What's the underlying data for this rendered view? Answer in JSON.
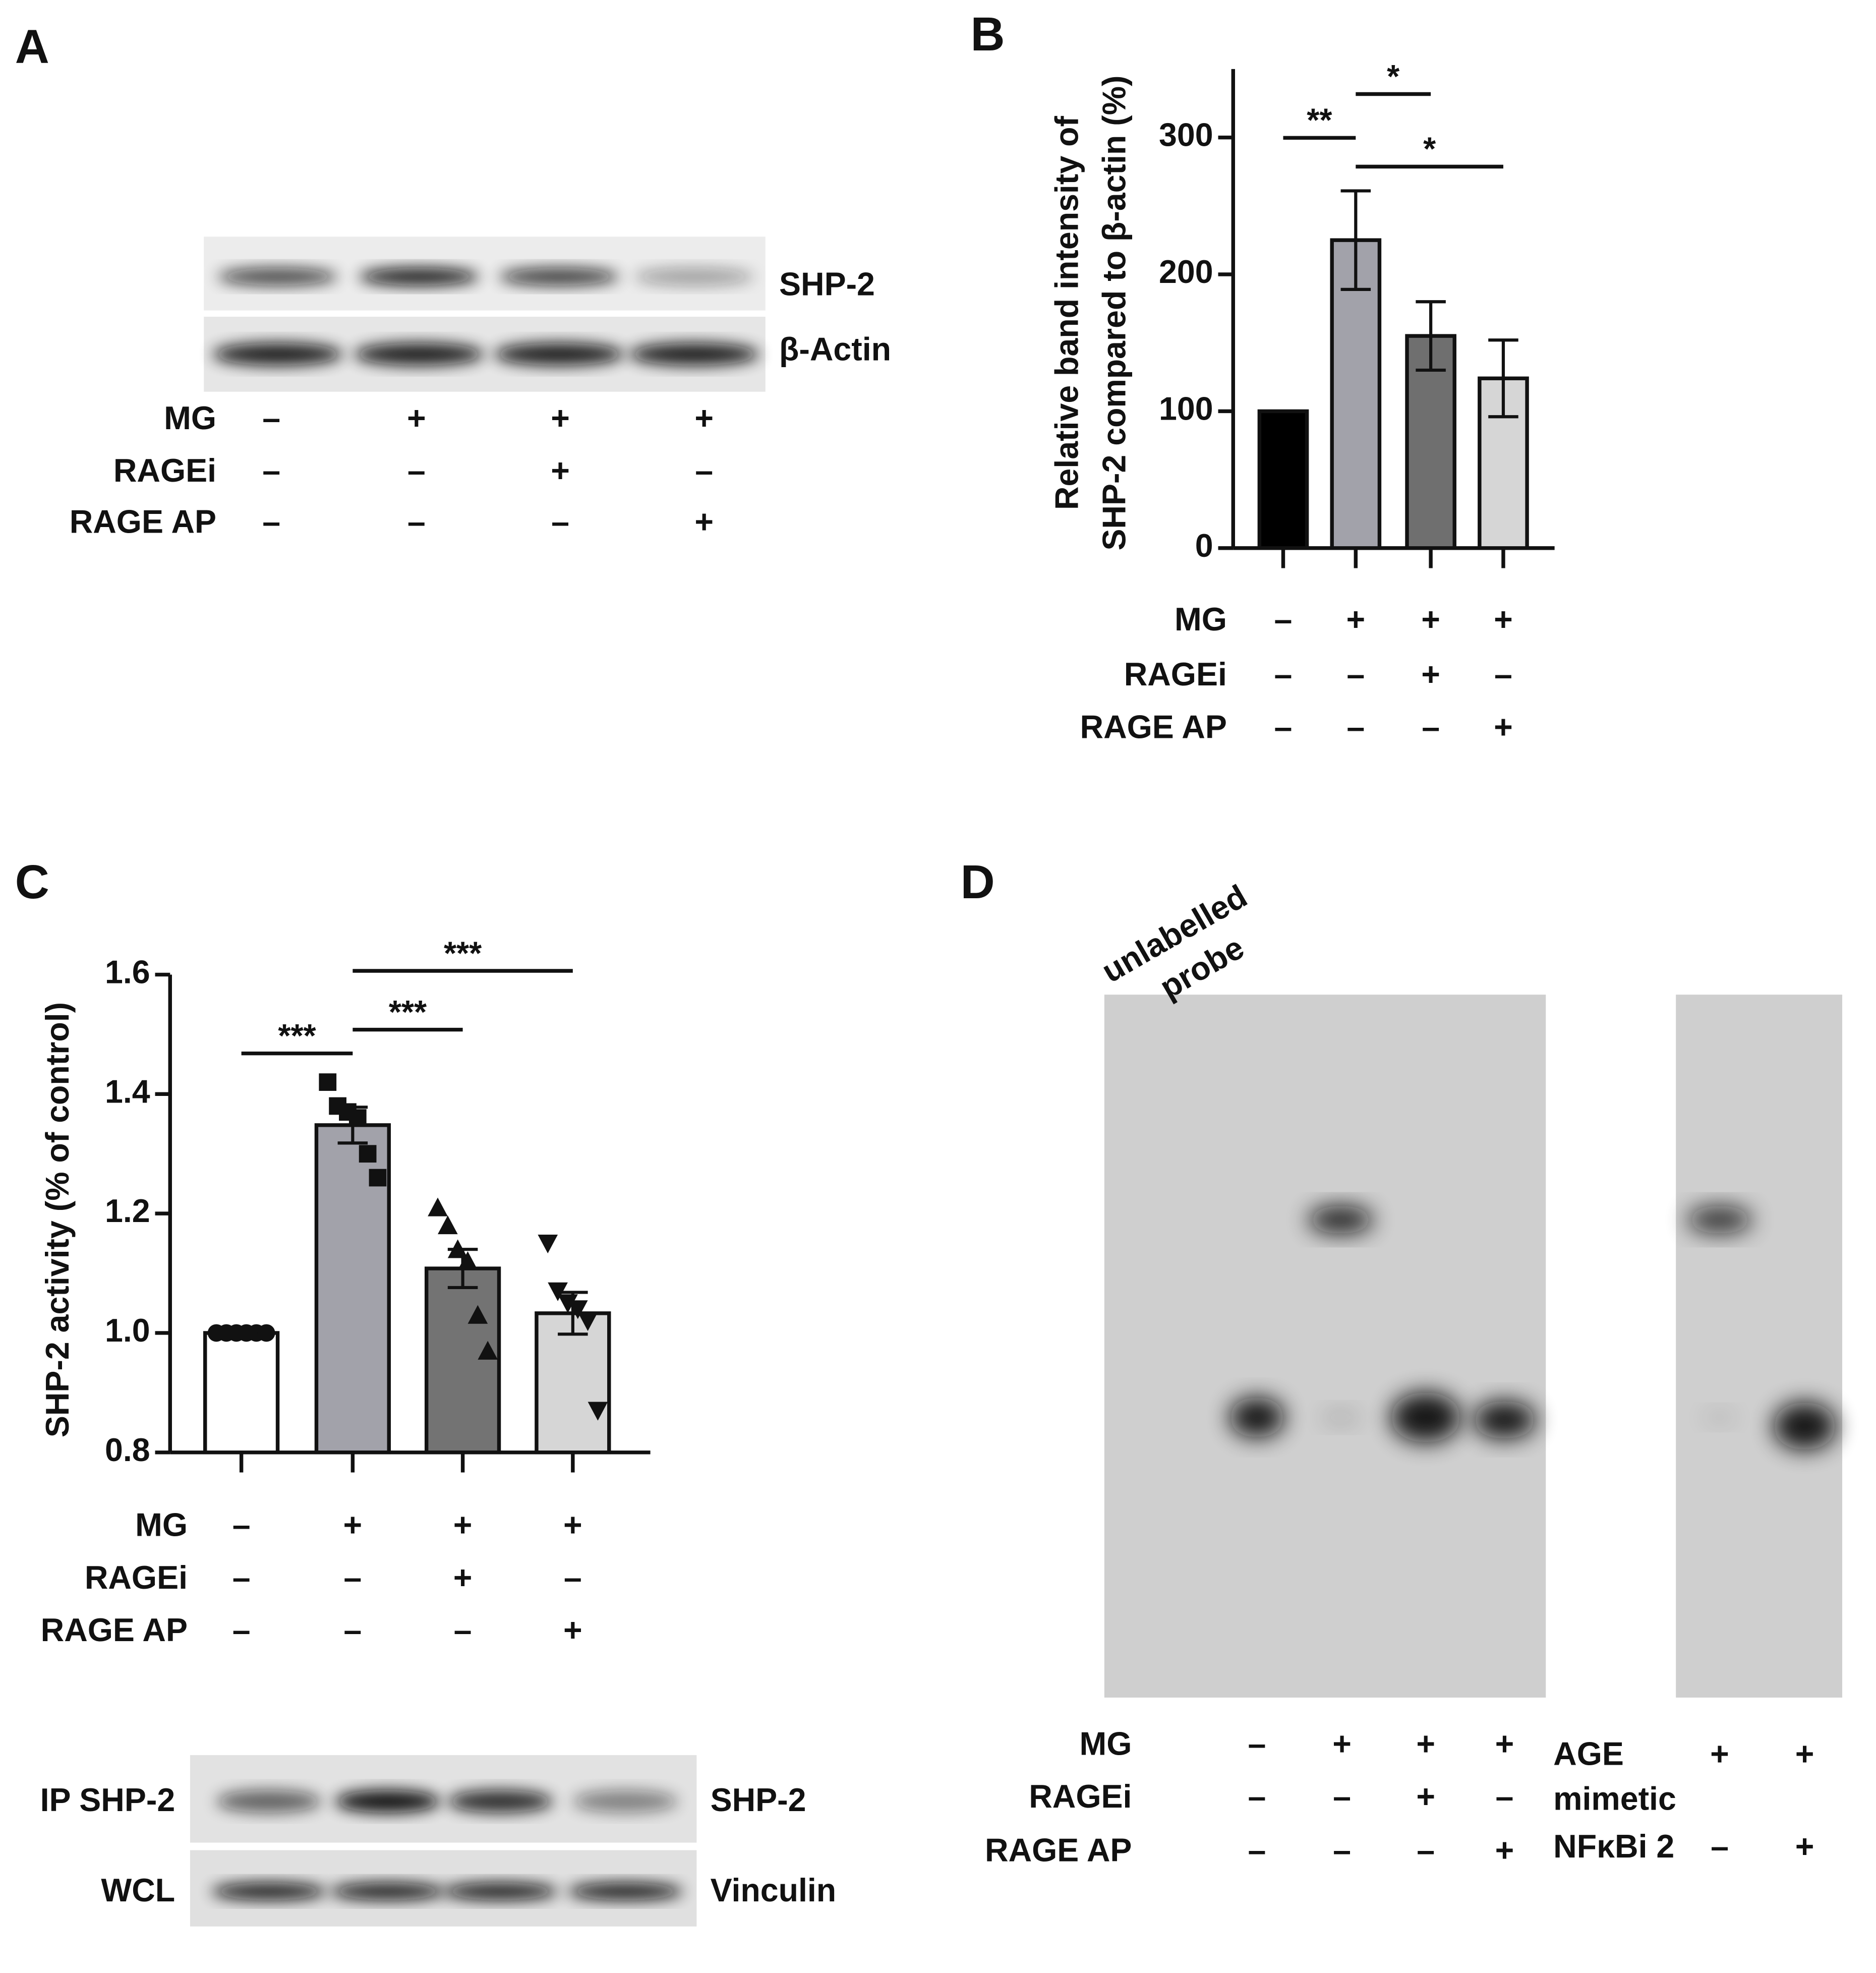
{
  "panels": {
    "a": "A",
    "b": "B",
    "c": "C",
    "d": "D"
  },
  "blot_a": {
    "bands": [
      "SHP-2",
      "β-Actin"
    ],
    "conditions": [
      {
        "name": "MG",
        "signs": [
          "–",
          "+",
          "+",
          "+"
        ]
      },
      {
        "name": "RAGEi",
        "signs": [
          "–",
          "–",
          "+",
          "–"
        ]
      },
      {
        "name": "RAGE AP",
        "signs": [
          "–",
          "–",
          "–",
          "+"
        ]
      }
    ]
  },
  "chart_data": [
    {
      "type": "bar",
      "ylabel": [
        "Relative band intensity of",
        "SHP-2 compared to β-actin (%)"
      ],
      "ylim": [
        0,
        350
      ],
      "yticks": [
        0,
        100,
        200,
        300
      ],
      "values": [
        100,
        225,
        155,
        124
      ],
      "errors": [
        0,
        36,
        25,
        28
      ],
      "colors": [
        "#000000",
        "#a2a2aa",
        "#6f6f6f",
        "#d6d6d6"
      ],
      "significance": [
        "**",
        "*",
        "*"
      ],
      "conditions": [
        {
          "name": "MG",
          "signs": [
            "–",
            "+",
            "+",
            "+"
          ]
        },
        {
          "name": "RAGEi",
          "signs": [
            "–",
            "–",
            "+",
            "–"
          ]
        },
        {
          "name": "RAGE AP",
          "signs": [
            "–",
            "–",
            "–",
            "+"
          ]
        }
      ]
    },
    {
      "type": "bar",
      "ylabel": [
        "SHP-2 activity (% of control)"
      ],
      "ylim": [
        0.8,
        1.6
      ],
      "yticks": [
        0.8,
        {
          "value": 1,
          "label": "1.0"
        },
        1.2,
        1.4,
        1.6
      ],
      "values": [
        1.0,
        1.348,
        1.108,
        1.033
      ],
      "errors": [
        0,
        0.03,
        0.032,
        0.035
      ],
      "points": [
        [
          1,
          1,
          1,
          1,
          1,
          1
        ],
        [
          1.42,
          1.38,
          1.37,
          1.36,
          1.3,
          1.26
        ],
        [
          1.21,
          1.18,
          1.14,
          1.12,
          1.03,
          0.97
        ],
        [
          1.15,
          1.07,
          1.05,
          1.04,
          1.02,
          0.87
        ]
      ],
      "colors": [
        "#ffffff",
        "#a2a2aa",
        "#737373",
        "#d6d6d6"
      ],
      "significance": [
        "***",
        "***",
        "***"
      ],
      "conditions": [
        {
          "name": "MG",
          "signs": [
            "–",
            "+",
            "+",
            "+"
          ]
        },
        {
          "name": "RAGEi",
          "signs": [
            "–",
            "–",
            "+",
            "–"
          ]
        },
        {
          "name": "RAGE AP",
          "signs": [
            "–",
            "–",
            "–",
            "+"
          ]
        }
      ]
    }
  ],
  "blot_c": {
    "rows": [
      "IP SHP-2",
      "WCL"
    ],
    "bands": [
      "SHP-2",
      "Vinculin"
    ]
  },
  "gel_d": {
    "lane_label": [
      "unlabelled",
      "probe"
    ],
    "conditions": [
      {
        "name": "MG",
        "signs": [
          "–",
          "+",
          "+",
          "+"
        ]
      },
      {
        "name": "RAGEi",
        "signs": [
          "–",
          "–",
          "+",
          "–"
        ]
      },
      {
        "name": "RAGE AP",
        "signs": [
          "–",
          "–",
          "–",
          "+"
        ]
      }
    ],
    "extra_conditions": [
      {
        "name": [
          "AGE",
          "mimetic"
        ],
        "signs": [
          "+",
          "+"
        ]
      },
      {
        "name": [
          "NFκBi 2"
        ],
        "signs": [
          "–",
          "+"
        ]
      }
    ]
  }
}
